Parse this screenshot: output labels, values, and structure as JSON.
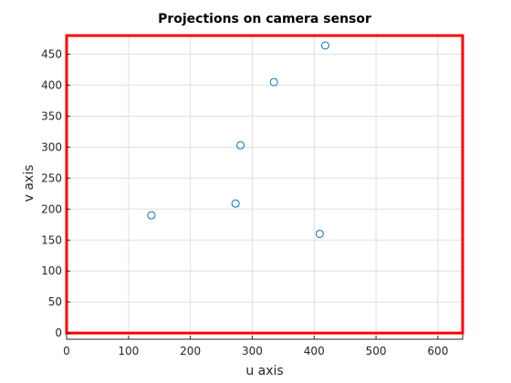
{
  "chart_data": {
    "type": "scatter",
    "title": "Projections on camera sensor",
    "xlabel": "u axis",
    "ylabel": "v axis",
    "xlim": [
      0,
      640
    ],
    "ylim": [
      -10,
      480
    ],
    "xticks": [
      0,
      100,
      200,
      300,
      400,
      500,
      600
    ],
    "yticks": [
      0,
      50,
      100,
      150,
      200,
      250,
      300,
      350,
      400,
      450
    ],
    "grid": true,
    "series": [
      {
        "marker": "circle",
        "color": "#0072bd",
        "points": [
          {
            "x": 137,
            "y": 190
          },
          {
            "x": 273,
            "y": 209
          },
          {
            "x": 281,
            "y": 303
          },
          {
            "x": 335,
            "y": 405
          },
          {
            "x": 418,
            "y": 464
          },
          {
            "x": 409,
            "y": 160
          }
        ]
      }
    ],
    "sensor_rectangle": {
      "color": "#ff0000",
      "x": [
        0,
        640
      ],
      "y": [
        0,
        480
      ]
    }
  }
}
